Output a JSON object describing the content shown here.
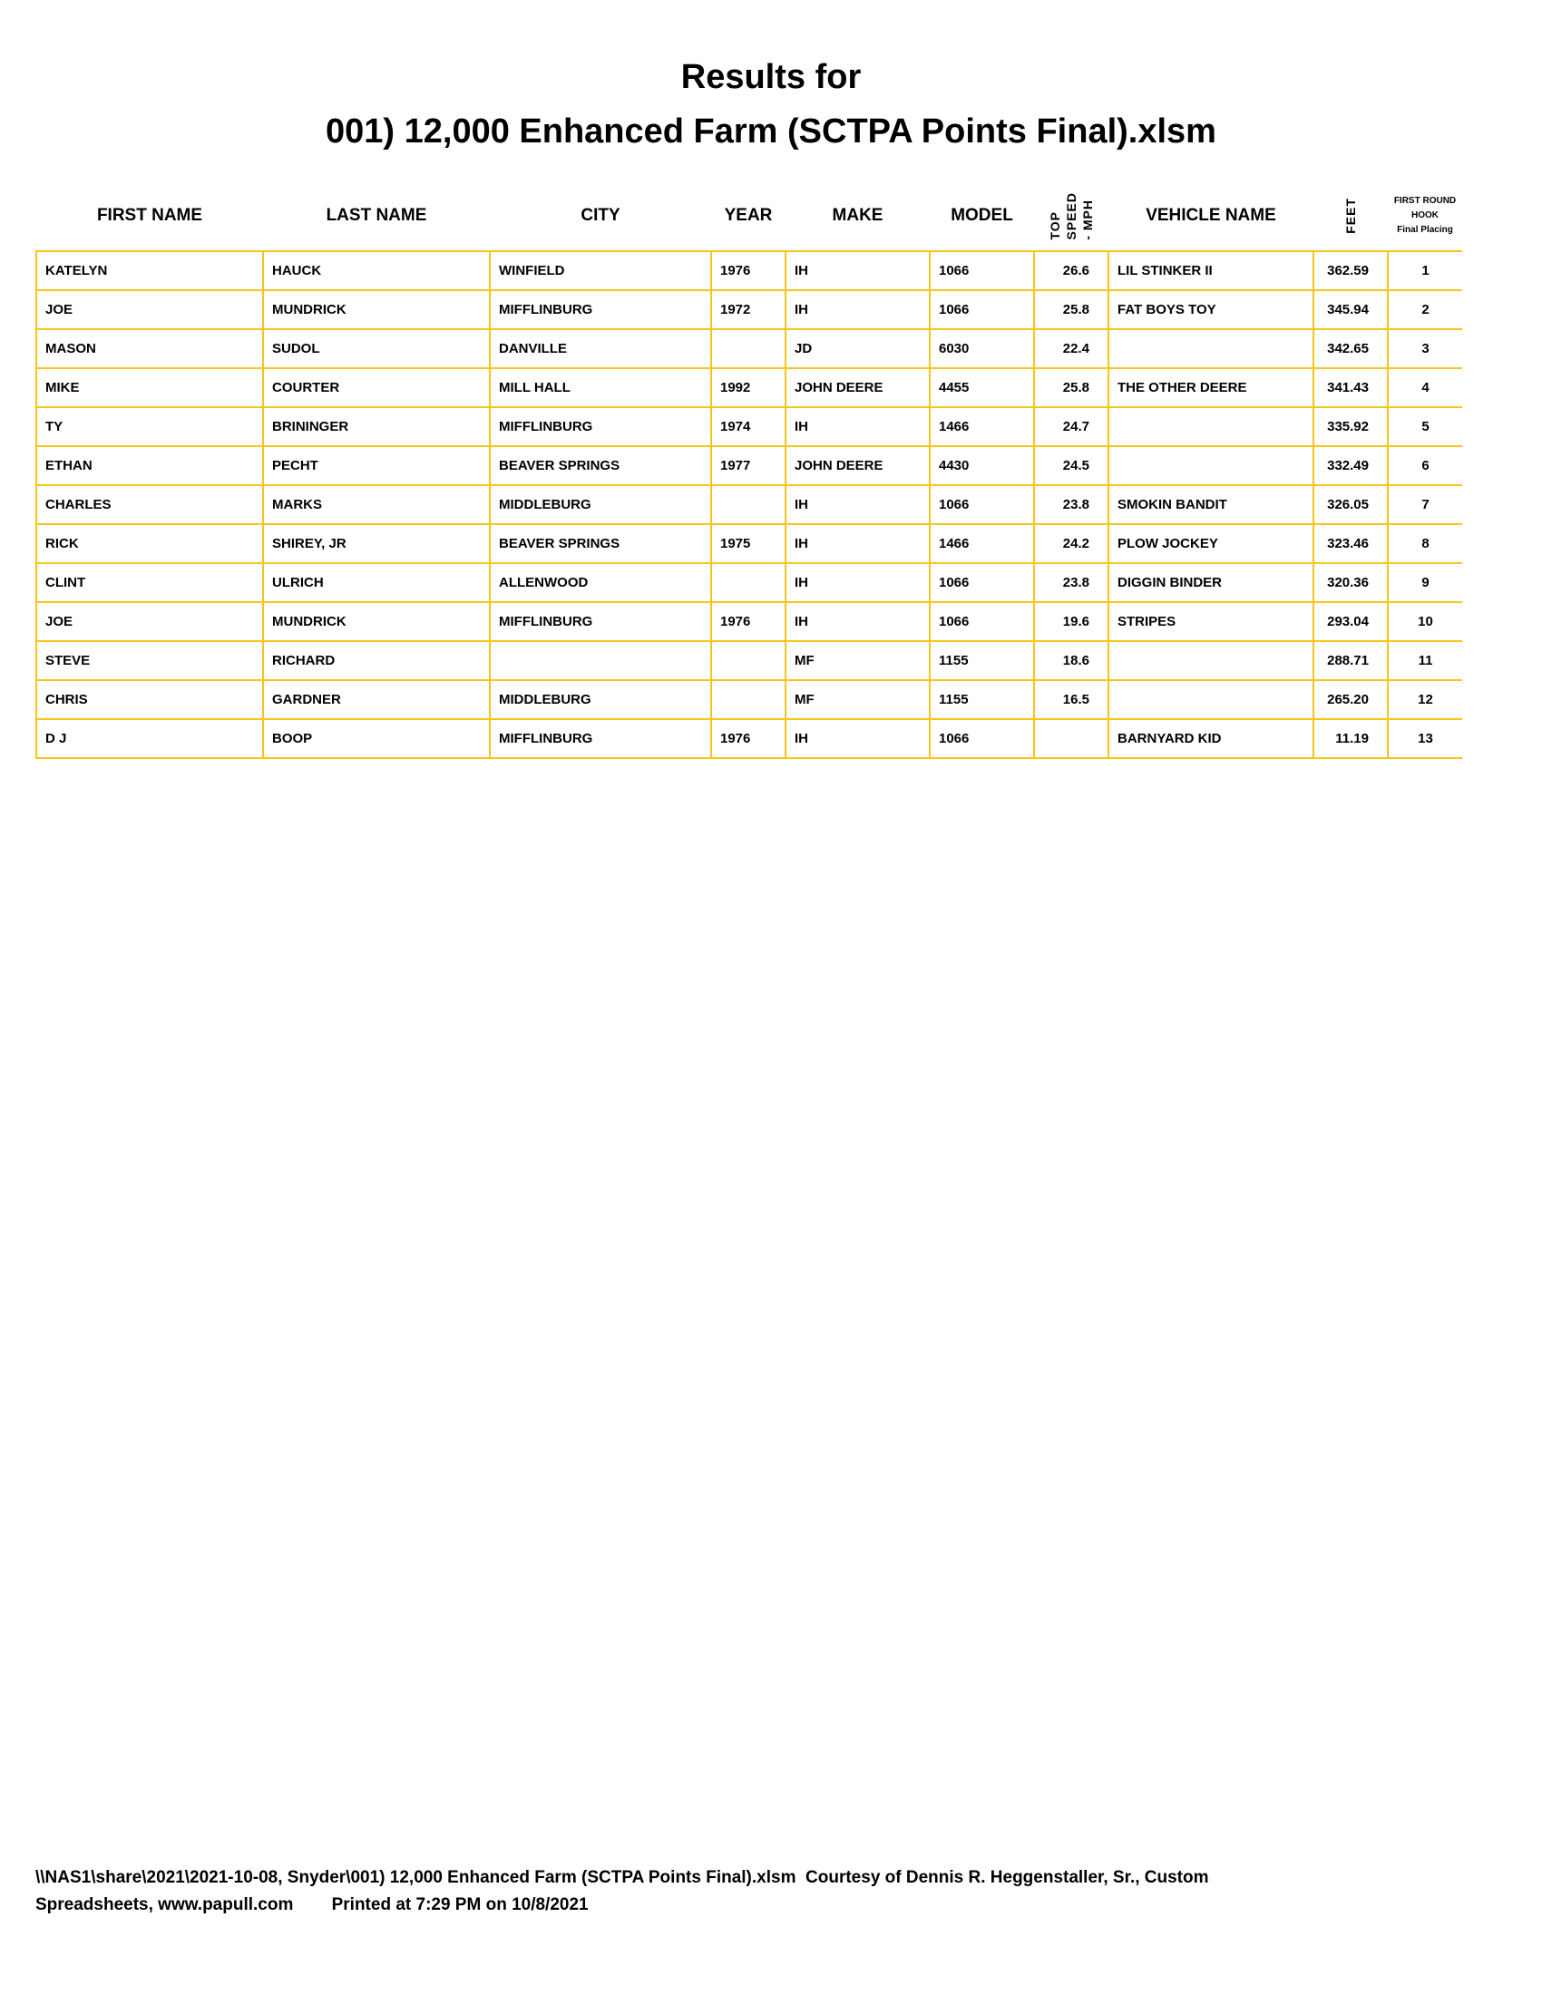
{
  "title_line1": "Results for",
  "title_line2": "001) 12,000 Enhanced Farm (SCTPA Points Final).xlsm",
  "columns": {
    "first_name": "FIRST NAME",
    "last_name": "LAST NAME",
    "city": "CITY",
    "year": "YEAR",
    "make": "MAKE",
    "model": "MODEL",
    "speed_1": "TOP",
    "speed_2": "SPEED",
    "speed_3": "- MPH",
    "vehicle_name": "VEHICLE NAME",
    "feet": "FEET",
    "placing_1": "FIRST ROUND",
    "placing_2": "HOOK",
    "placing_3": "Final Placing"
  },
  "rows": [
    {
      "first": "KATELYN",
      "last": "HAUCK",
      "city": "WINFIELD",
      "year": "1976",
      "make": "IH",
      "model": "1066",
      "speed": "26.6",
      "vehicle": "LIL STINKER II",
      "feet": "362.59",
      "place": "1"
    },
    {
      "first": "JOE",
      "last": "MUNDRICK",
      "city": "MIFFLINBURG",
      "year": "1972",
      "make": "IH",
      "model": "1066",
      "speed": "25.8",
      "vehicle": "FAT BOYS TOY",
      "feet": "345.94",
      "place": "2"
    },
    {
      "first": "MASON",
      "last": "SUDOL",
      "city": "DANVILLE",
      "year": "",
      "make": "JD",
      "model": "6030",
      "speed": "22.4",
      "vehicle": "",
      "feet": "342.65",
      "place": "3"
    },
    {
      "first": "MIKE",
      "last": "COURTER",
      "city": "MILL HALL",
      "year": "1992",
      "make": "JOHN DEERE",
      "model": "4455",
      "speed": "25.8",
      "vehicle": "THE OTHER DEERE",
      "feet": "341.43",
      "place": "4"
    },
    {
      "first": "TY",
      "last": "BRININGER",
      "city": "MIFFLINBURG",
      "year": "1974",
      "make": "IH",
      "model": "1466",
      "speed": "24.7",
      "vehicle": "",
      "feet": "335.92",
      "place": "5"
    },
    {
      "first": "ETHAN",
      "last": "PECHT",
      "city": "BEAVER SPRINGS",
      "year": "1977",
      "make": "JOHN DEERE",
      "model": "4430",
      "speed": "24.5",
      "vehicle": "",
      "feet": "332.49",
      "place": "6"
    },
    {
      "first": "CHARLES",
      "last": "MARKS",
      "city": "MIDDLEBURG",
      "year": "",
      "make": "IH",
      "model": "1066",
      "speed": "23.8",
      "vehicle": "SMOKIN BANDIT",
      "feet": "326.05",
      "place": "7"
    },
    {
      "first": "RICK",
      "last": "SHIREY, JR",
      "city": "BEAVER SPRINGS",
      "year": "1975",
      "make": "IH",
      "model": "1466",
      "speed": "24.2",
      "vehicle": "PLOW JOCKEY",
      "feet": "323.46",
      "place": "8"
    },
    {
      "first": "CLINT",
      "last": "ULRICH",
      "city": "ALLENWOOD",
      "year": "",
      "make": "IH",
      "model": "1066",
      "speed": "23.8",
      "vehicle": "DIGGIN BINDER",
      "feet": "320.36",
      "place": "9"
    },
    {
      "first": "JOE",
      "last": "MUNDRICK",
      "city": "MIFFLINBURG",
      "year": "1976",
      "make": "IH",
      "model": "1066",
      "speed": "19.6",
      "vehicle": "STRIPES",
      "feet": "293.04",
      "place": "10"
    },
    {
      "first": "STEVE",
      "last": "RICHARD",
      "city": "",
      "year": "",
      "make": "MF",
      "model": "1155",
      "speed": "18.6",
      "vehicle": "",
      "feet": "288.71",
      "place": "11"
    },
    {
      "first": "CHRIS",
      "last": "GARDNER",
      "city": "MIDDLEBURG",
      "year": "",
      "make": "MF",
      "model": "1155",
      "speed": "16.5",
      "vehicle": "",
      "feet": "265.20",
      "place": "12"
    },
    {
      "first": "D J",
      "last": "BOOP",
      "city": "MIFFLINBURG",
      "year": "1976",
      "make": "IH",
      "model": "1066",
      "speed": "",
      "vehicle": "BARNYARD KID",
      "feet": "11.19",
      "place": "13"
    }
  ],
  "footer_line1": "\\\\NAS1\\share\\2021\\2021-10-08, Snyder\\001) 12,000 Enhanced Farm (SCTPA Points Final).xlsm  Courtesy of Dennis R. Heggenstaller, Sr., Custom",
  "footer_line2": "Spreadsheets, www.papull.com        Printed at 7:29 PM on 10/8/2021",
  "colors": {
    "grid": "#f5c518"
  }
}
